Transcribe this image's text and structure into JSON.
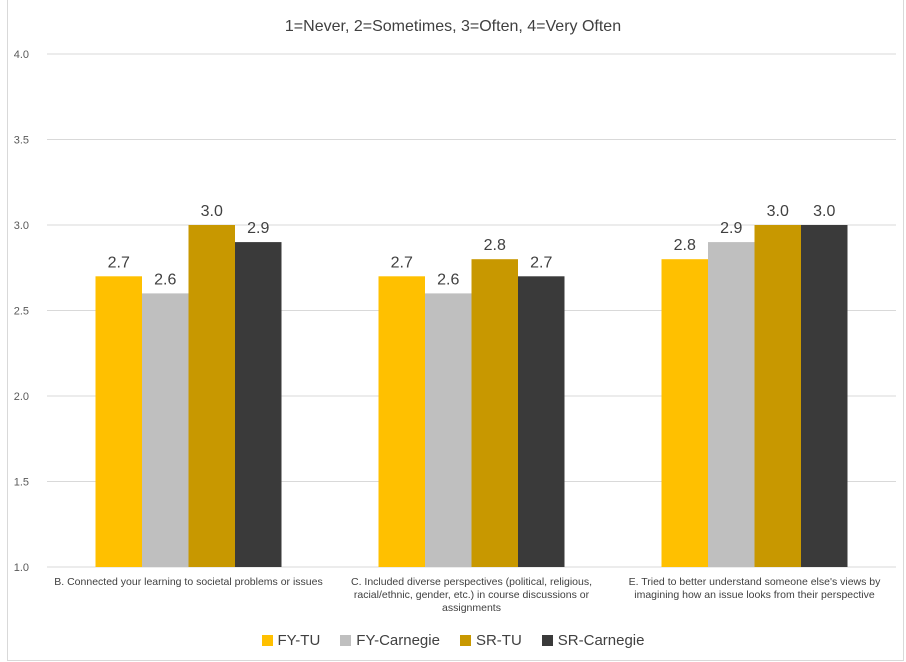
{
  "chart_data": {
    "type": "bar",
    "title": "1=Never, 2=Sometimes, 3=Often, 4=Very Often",
    "categories": [
      "B. Connected your learning to societal problems or issues",
      "C. Included diverse perspectives (political, religious, racial/ethnic, gender, etc.) in course discussions or assignments",
      "E. Tried to better understand someone else's views by imagining how an issue looks from their perspective"
    ],
    "series": [
      {
        "name": "FY-TU",
        "color": "#ffc000",
        "values": [
          2.7,
          2.7,
          2.8
        ],
        "labels": [
          "2.7",
          "2.7",
          "2.8"
        ]
      },
      {
        "name": "FY-Carnegie",
        "color": "#bfbfbf",
        "values": [
          2.6,
          2.6,
          2.9
        ],
        "labels": [
          "2.6",
          "2.6",
          "2.9"
        ]
      },
      {
        "name": "SR-TU",
        "color": "#c89800",
        "values": [
          3.0,
          2.8,
          3.0
        ],
        "labels": [
          "3.0",
          "2.8",
          "3.0"
        ]
      },
      {
        "name": "SR-Carnegie",
        "color": "#3a3a3a",
        "values": [
          2.9,
          2.7,
          3.0
        ],
        "labels": [
          "2.9",
          "2.7",
          "3.0"
        ]
      }
    ],
    "ylim": [
      1.0,
      4.0
    ],
    "yticks": [
      "1.0",
      "1.5",
      "2.0",
      "2.5",
      "3.0",
      "3.5",
      "4.0"
    ],
    "grid": true,
    "legend": "bottom"
  }
}
